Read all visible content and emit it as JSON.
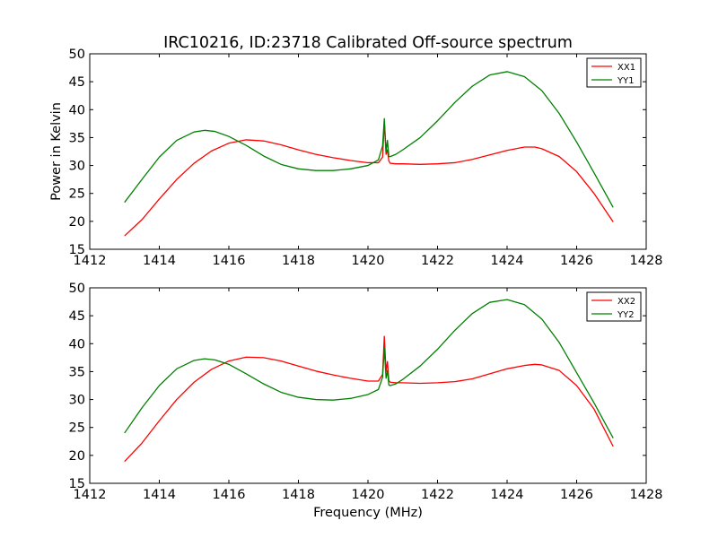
{
  "title": "IRC10216, ID:23718 Calibrated Off-source spectrum",
  "colors": {
    "XX": "#ff0000",
    "YY": "#008000"
  },
  "chart_data": [
    {
      "type": "line",
      "title": "IRC10216, ID:23718 Calibrated Off-source spectrum",
      "xlabel": "",
      "ylabel": "Power in Kelvin",
      "xlim": [
        1412,
        1428
      ],
      "ylim": [
        15,
        50
      ],
      "xticks": [
        1412,
        1414,
        1416,
        1418,
        1420,
        1422,
        1424,
        1426,
        1428
      ],
      "yticks": [
        15,
        20,
        25,
        30,
        35,
        40,
        45,
        50
      ],
      "grid": false,
      "legend_position": "top-right",
      "series": [
        {
          "name": "XX1",
          "color": "#ff0000",
          "x": [
            1413.0,
            1413.5,
            1414.0,
            1414.5,
            1415.0,
            1415.5,
            1416.0,
            1416.5,
            1417.0,
            1417.5,
            1418.0,
            1418.5,
            1419.0,
            1419.5,
            1420.0,
            1420.3,
            1420.42,
            1420.47,
            1420.52,
            1420.56,
            1420.6,
            1420.64,
            1420.8,
            1421.0,
            1421.5,
            1422.0,
            1422.5,
            1423.0,
            1423.5,
            1424.0,
            1424.5,
            1424.8,
            1425.0,
            1425.5,
            1426.0,
            1426.5,
            1427.05
          ],
          "y": [
            17.4,
            20.3,
            24.0,
            27.5,
            30.4,
            32.6,
            34.0,
            34.6,
            34.4,
            33.7,
            32.8,
            32.0,
            31.4,
            30.9,
            30.5,
            30.5,
            31.5,
            37.8,
            32.0,
            32.8,
            30.8,
            30.4,
            30.3,
            30.3,
            30.2,
            30.3,
            30.5,
            31.1,
            31.9,
            32.7,
            33.3,
            33.3,
            33.0,
            31.6,
            28.9,
            25.0,
            19.9
          ]
        },
        {
          "name": "YY1",
          "color": "#008000",
          "x": [
            1413.0,
            1413.5,
            1414.0,
            1414.5,
            1415.0,
            1415.3,
            1415.6,
            1416.0,
            1416.5,
            1417.0,
            1417.5,
            1418.0,
            1418.5,
            1419.0,
            1419.5,
            1420.0,
            1420.3,
            1420.42,
            1420.47,
            1420.52,
            1420.56,
            1420.6,
            1420.64,
            1420.8,
            1421.0,
            1421.5,
            1422.0,
            1422.5,
            1423.0,
            1423.5,
            1424.0,
            1424.5,
            1425.0,
            1425.5,
            1426.0,
            1426.5,
            1427.05
          ],
          "y": [
            23.4,
            27.5,
            31.5,
            34.5,
            36.0,
            36.3,
            36.1,
            35.2,
            33.6,
            31.7,
            30.2,
            29.4,
            29.1,
            29.1,
            29.4,
            30.0,
            31.0,
            33.5,
            38.4,
            32.5,
            34.5,
            31.6,
            31.6,
            32.0,
            32.8,
            35.0,
            38.0,
            41.3,
            44.2,
            46.2,
            46.8,
            45.9,
            43.4,
            39.3,
            34.2,
            28.7,
            22.5
          ]
        }
      ]
    },
    {
      "type": "line",
      "title": "",
      "xlabel": "Frequency (MHz)",
      "ylabel": "",
      "xlim": [
        1412,
        1428
      ],
      "ylim": [
        15,
        50
      ],
      "xticks": [
        1412,
        1414,
        1416,
        1418,
        1420,
        1422,
        1424,
        1426,
        1428
      ],
      "yticks": [
        15,
        20,
        25,
        30,
        35,
        40,
        45,
        50
      ],
      "grid": false,
      "legend_position": "top-right",
      "series": [
        {
          "name": "XX2",
          "color": "#ff0000",
          "x": [
            1413.0,
            1413.5,
            1414.0,
            1414.5,
            1415.0,
            1415.5,
            1416.0,
            1416.5,
            1417.0,
            1417.5,
            1418.0,
            1418.5,
            1419.0,
            1419.5,
            1420.0,
            1420.3,
            1420.42,
            1420.47,
            1420.52,
            1420.56,
            1420.6,
            1420.64,
            1420.8,
            1421.0,
            1421.5,
            1422.0,
            1422.5,
            1423.0,
            1423.5,
            1424.0,
            1424.5,
            1424.8,
            1425.0,
            1425.5,
            1426.0,
            1426.5,
            1427.05
          ],
          "y": [
            18.9,
            22.2,
            26.2,
            30.0,
            33.1,
            35.4,
            36.9,
            37.6,
            37.5,
            36.9,
            36.0,
            35.1,
            34.4,
            33.8,
            33.3,
            33.3,
            34.5,
            41.3,
            35.0,
            36.8,
            33.4,
            33.1,
            33.0,
            33.0,
            32.9,
            33.0,
            33.2,
            33.7,
            34.6,
            35.5,
            36.1,
            36.3,
            36.2,
            35.2,
            32.5,
            28.3,
            21.6
          ]
        },
        {
          "name": "YY2",
          "color": "#008000",
          "x": [
            1413.0,
            1413.5,
            1414.0,
            1414.5,
            1415.0,
            1415.3,
            1415.6,
            1416.0,
            1416.5,
            1417.0,
            1417.5,
            1418.0,
            1418.5,
            1419.0,
            1419.5,
            1420.0,
            1420.3,
            1420.42,
            1420.47,
            1420.52,
            1420.56,
            1420.6,
            1420.64,
            1420.8,
            1421.0,
            1421.5,
            1422.0,
            1422.5,
            1423.0,
            1423.5,
            1424.0,
            1424.5,
            1425.0,
            1425.5,
            1426.0,
            1426.5,
            1427.05
          ],
          "y": [
            24.0,
            28.5,
            32.5,
            35.5,
            37.0,
            37.3,
            37.1,
            36.3,
            34.6,
            32.8,
            31.3,
            30.4,
            30.0,
            29.9,
            30.2,
            30.9,
            31.8,
            34.0,
            39.2,
            33.8,
            35.2,
            32.6,
            32.5,
            32.8,
            33.6,
            36.0,
            39.0,
            42.4,
            45.4,
            47.4,
            47.9,
            47.0,
            44.4,
            40.2,
            34.8,
            29.4,
            23.1
          ]
        }
      ]
    }
  ]
}
